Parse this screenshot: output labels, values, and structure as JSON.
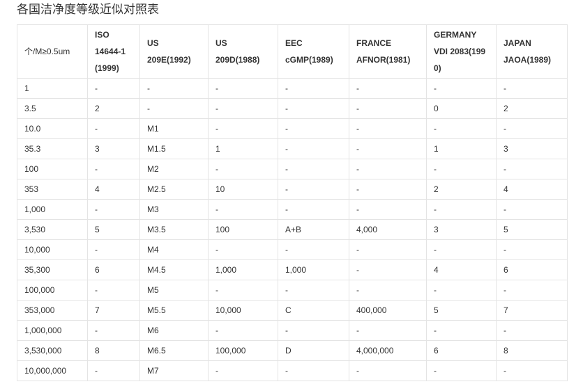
{
  "title": "各国洁净度等级近似对照表",
  "headers": [
    [
      "个/M≥0.5um"
    ],
    [
      "ISO",
      "14644-1",
      "(1999)"
    ],
    [
      "US",
      "209E(1992)"
    ],
    [
      "US",
      "209D(1988)"
    ],
    [
      "EEC",
      "cGMP(1989)"
    ],
    [
      "FRANCE",
      "AFNOR(1981)"
    ],
    [
      "GERMANY",
      "VDI 2083(199",
      "0)"
    ],
    [
      "JAPAN",
      "JAOA(1989)"
    ]
  ],
  "rows": [
    [
      "1",
      "-",
      "-",
      "-",
      "-",
      "-",
      "-",
      "-"
    ],
    [
      "3.5",
      "2",
      "-",
      "-",
      "-",
      "-",
      "0",
      "2"
    ],
    [
      "10.0",
      "-",
      "M1",
      "-",
      "-",
      "-",
      "-",
      "-"
    ],
    [
      "35.3",
      "3",
      "M1.5",
      "1",
      "-",
      "-",
      "1",
      "3"
    ],
    [
      "100",
      "-",
      "M2",
      "-",
      "-",
      "-",
      "-",
      "-"
    ],
    [
      "353",
      "4",
      "M2.5",
      "10",
      "-",
      "-",
      "2",
      "4"
    ],
    [
      "1,000",
      "-",
      "M3",
      "-",
      "-",
      "-",
      "-",
      "-"
    ],
    [
      "3,530",
      "5",
      "M3.5",
      "100",
      "A+B",
      "4,000",
      "3",
      "5"
    ],
    [
      "10,000",
      "-",
      "M4",
      "-",
      "-",
      "-",
      "-",
      "-"
    ],
    [
      "35,300",
      "6",
      "M4.5",
      "1,000",
      "1,000",
      "-",
      "4",
      "6"
    ],
    [
      "100,000",
      "-",
      "M5",
      "-",
      "-",
      "-",
      "-",
      "-"
    ],
    [
      "353,000",
      "7",
      "M5.5",
      "10,000",
      "C",
      "400,000",
      "5",
      "7"
    ],
    [
      "1,000,000",
      "-",
      "M6",
      "-",
      "-",
      "-",
      "-",
      "-"
    ],
    [
      "3,530,000",
      "8",
      "M6.5",
      "100,000",
      "D",
      "4,000,000",
      "6",
      "8"
    ],
    [
      "10,000,000",
      "-",
      "M7",
      "-",
      "-",
      "-",
      "-",
      "-"
    ]
  ]
}
